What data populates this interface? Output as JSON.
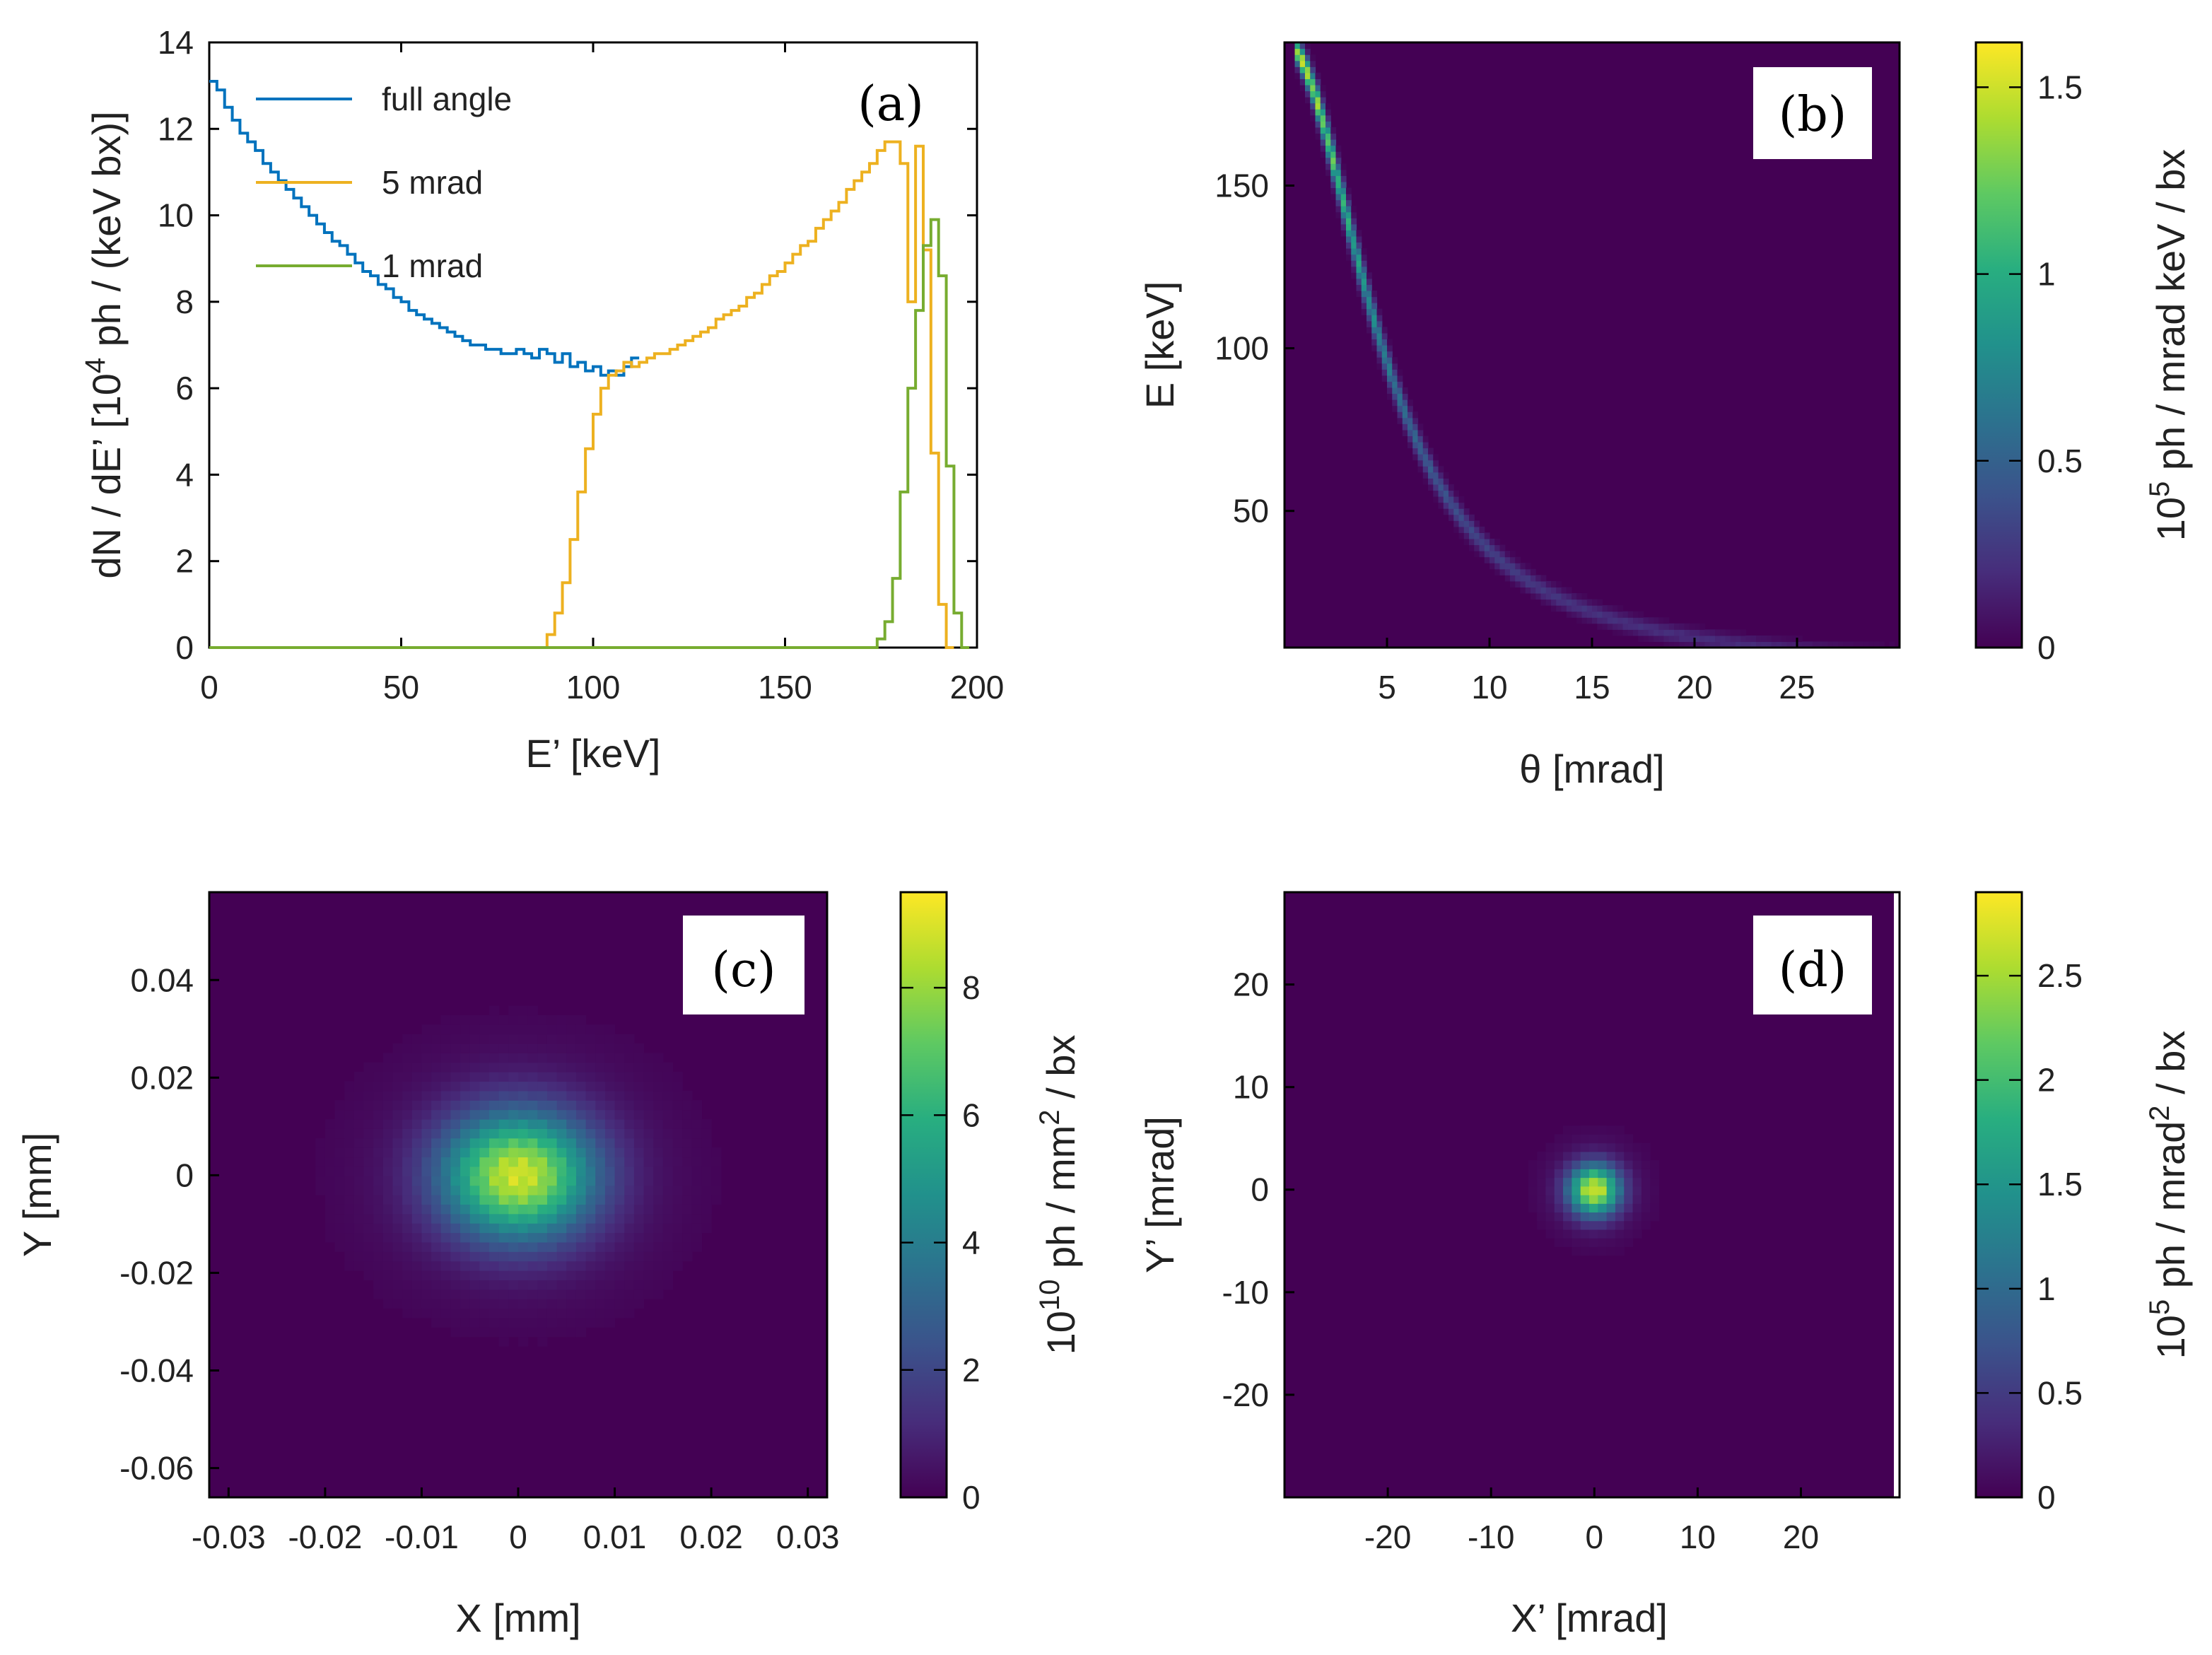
{
  "chart_data": [
    {
      "type": "line",
      "panel": "a",
      "panel_label": "(a)",
      "xlabel": "E’ [keV]",
      "ylabel_prefix": "dN / dE’ [10",
      "ylabel_sup": "4",
      "ylabel_suffix": " ph / (keV bx)]",
      "xlim": [
        0,
        200
      ],
      "ylim": [
        0,
        14
      ],
      "xticks": [
        0,
        50,
        100,
        150,
        200
      ],
      "yticks": [
        0,
        2,
        4,
        6,
        8,
        10,
        12,
        14
      ],
      "legend_position": "top-left",
      "series": [
        {
          "name": "full angle",
          "color": "#0072bd",
          "x": [
            0,
            2,
            4,
            6,
            8,
            10,
            12,
            14,
            16,
            18,
            20,
            22,
            24,
            26,
            28,
            30,
            32,
            34,
            36,
            38,
            40,
            42,
            44,
            46,
            48,
            50,
            52,
            54,
            56,
            58,
            60,
            62,
            64,
            66,
            68,
            70,
            72,
            74,
            76,
            78,
            80,
            82,
            84,
            86,
            88,
            90,
            92,
            94,
            96,
            98,
            100,
            102,
            104,
            106,
            108,
            110
          ],
          "values": [
            13.1,
            12.9,
            12.5,
            12.2,
            11.9,
            11.7,
            11.5,
            11.2,
            11.0,
            10.8,
            10.6,
            10.4,
            10.2,
            10.0,
            9.8,
            9.6,
            9.4,
            9.3,
            9.1,
            8.9,
            8.7,
            8.6,
            8.4,
            8.3,
            8.1,
            8.0,
            7.8,
            7.7,
            7.6,
            7.5,
            7.4,
            7.3,
            7.2,
            7.1,
            7.0,
            7.0,
            6.9,
            6.9,
            6.8,
            6.8,
            6.9,
            6.8,
            6.7,
            6.9,
            6.8,
            6.6,
            6.8,
            6.5,
            6.6,
            6.4,
            6.5,
            6.3,
            6.4,
            6.3,
            6.5,
            6.7
          ]
        },
        {
          "name": "5 mrad",
          "color": "#edb120",
          "x": [
            0,
            86,
            88,
            90,
            92,
            94,
            96,
            98,
            100,
            102,
            104,
            106,
            108,
            110,
            112,
            114,
            116,
            118,
            120,
            122,
            124,
            126,
            128,
            130,
            132,
            134,
            136,
            138,
            140,
            142,
            144,
            146,
            148,
            150,
            152,
            154,
            156,
            158,
            160,
            162,
            164,
            166,
            168,
            170,
            172,
            174,
            176,
            178,
            180,
            182,
            184,
            186,
            188,
            190,
            192
          ],
          "values": [
            0,
            0,
            0.3,
            0.8,
            1.5,
            2.5,
            3.6,
            4.6,
            5.4,
            6.0,
            6.3,
            6.4,
            6.6,
            6.5,
            6.6,
            6.7,
            6.8,
            6.8,
            6.9,
            7.0,
            7.1,
            7.2,
            7.3,
            7.4,
            7.6,
            7.7,
            7.8,
            7.9,
            8.1,
            8.2,
            8.4,
            8.6,
            8.7,
            8.9,
            9.1,
            9.3,
            9.4,
            9.7,
            9.9,
            10.1,
            10.3,
            10.6,
            10.8,
            11.0,
            11.2,
            11.5,
            11.7,
            11.7,
            11.2,
            8.0,
            11.6,
            9.2,
            4.5,
            1.0,
            0
          ]
        },
        {
          "name": "1 mrad",
          "color": "#77ac30",
          "x": [
            0,
            172,
            174,
            176,
            178,
            180,
            182,
            184,
            186,
            188,
            190,
            192,
            194,
            196
          ],
          "values": [
            0,
            0,
            0.2,
            0.6,
            1.6,
            3.6,
            6.0,
            7.8,
            9.3,
            9.9,
            8.6,
            4.2,
            0.8,
            0
          ]
        }
      ]
    },
    {
      "type": "heatmap",
      "panel": "b",
      "panel_label": "(b)",
      "xlabel": "θ [mrad]",
      "ylabel": "E [keV]",
      "xlim": [
        0,
        30
      ],
      "ylim": [
        8,
        194
      ],
      "xticks": [
        5,
        10,
        15,
        20,
        25
      ],
      "yticks": [
        50,
        100,
        150
      ],
      "relation": "E = 194 / (1 + 0.041 θ²)",
      "colorbar_label_prefix": "10",
      "colorbar_label_sup": "5",
      "colorbar_label_suffix": " ph / mrad keV / bx",
      "colorbar_range": [
        0,
        1.62
      ],
      "colorbar_ticks": [
        "0",
        "0.5",
        "1",
        "1.5"
      ],
      "colorbar_tick_values": [
        0,
        0.5,
        1,
        1.5
      ]
    },
    {
      "type": "heatmap",
      "panel": "c",
      "panel_label": "(c)",
      "xlabel": "X [mm]",
      "ylabel": "Y [mm]",
      "xlim": [
        -0.032,
        0.032
      ],
      "ylim": [
        -0.066,
        0.058
      ],
      "xticks": [
        "-0.03",
        "-0.02",
        "-0.01",
        "0",
        "0.01",
        "0.02",
        "0.03"
      ],
      "xtick_values": [
        -0.03,
        -0.02,
        -0.01,
        0,
        0.01,
        0.02,
        0.03
      ],
      "yticks": [
        "-0.06",
        "-0.04",
        "-0.02",
        "0",
        "0.02",
        "0.04"
      ],
      "ytick_values": [
        -0.06,
        -0.04,
        -0.02,
        0,
        0.02,
        0.04
      ],
      "peak": 9.2,
      "sigma_x": 0.0055,
      "sigma_y": 0.009,
      "colorbar_label_prefix": "10",
      "colorbar_label_sup": "10",
      "colorbar_label_suffix": " ph / mm",
      "colorbar_label_sup2": "2",
      "colorbar_label_suffix2": " / bx",
      "colorbar_range": [
        0,
        9.5
      ],
      "colorbar_ticks": [
        "0",
        "2",
        "4",
        "6",
        "8"
      ],
      "colorbar_tick_values": [
        0,
        2,
        4,
        6,
        8
      ]
    },
    {
      "type": "heatmap",
      "panel": "d",
      "panel_label": "(d)",
      "xlabel": "X’ [mrad]",
      "ylabel": "Y’ [mrad]",
      "xlim": [
        -30,
        29
      ],
      "ylim": [
        -30,
        29
      ],
      "xticks": [
        "-20",
        "-10",
        "0",
        "10",
        "20"
      ],
      "xtick_values": [
        -20,
        -10,
        0,
        10,
        20
      ],
      "yticks": [
        "-20",
        "-10",
        "0",
        "10",
        "20"
      ],
      "ytick_values": [
        -20,
        -10,
        0,
        10,
        20
      ],
      "peak": 2.85,
      "sigma": 1.7,
      "colorbar_label_prefix": "10",
      "colorbar_label_sup": "5",
      "colorbar_label_suffix": " ph / mrad",
      "colorbar_label_sup2": "2",
      "colorbar_label_suffix2": " / bx",
      "colorbar_range": [
        0,
        2.9
      ],
      "colorbar_ticks": [
        "0",
        "0.5",
        "1",
        "1.5",
        "2",
        "2.5"
      ],
      "colorbar_tick_values": [
        0,
        0.5,
        1,
        1.5,
        2,
        2.5
      ]
    }
  ]
}
